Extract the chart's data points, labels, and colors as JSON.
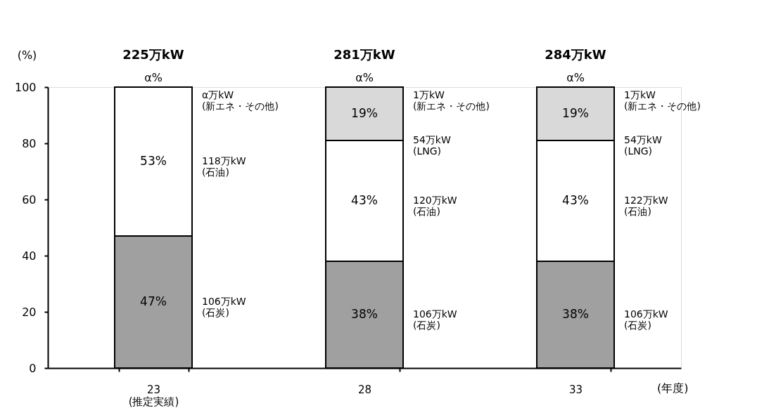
{
  "chart_data": {
    "type": "bar",
    "stacked": true,
    "ylabel": "(%)",
    "xlabel": "(年度)",
    "categories": [
      "23\n(推定実績)",
      "28",
      "33"
    ],
    "series": [
      {
        "color": "#a0a0a0",
        "values": [
          47,
          38,
          38
        ],
        "value_labels": [
          "47%",
          "38%",
          "38%"
        ]
      },
      {
        "color": "#ffffff",
        "values": [
          53,
          43,
          43
        ],
        "value_labels": [
          "53%",
          "43%",
          "43%"
        ]
      },
      {
        "color": "#d9d9d9",
        "values": [
          null,
          19,
          19
        ],
        "value_labels": [
          null,
          "19%",
          "19%"
        ]
      }
    ],
    "ylim": [
      0,
      100
    ],
    "yticks": [
      0,
      20,
      40,
      60,
      80,
      100
    ],
    "grid": false,
    "annotations": [
      "225万kW",
      "281万kW",
      "284万kW",
      "α%",
      "α%",
      "α%",
      "α万kW\n(新エネ・その他)",
      "118万kW\n(石油)",
      "106万kW\n(石炭)",
      "1万kW\n(新エネ・その他)",
      "54万kW\n(LNG)",
      "120万kW\n(石油)",
      "106万kW\n(石炭)",
      "1万kW\n(新エネ・その他)",
      "54万kW\n(LNG)",
      "122万kW\n(石油)",
      "106万kW\n(石炭)"
    ]
  }
}
